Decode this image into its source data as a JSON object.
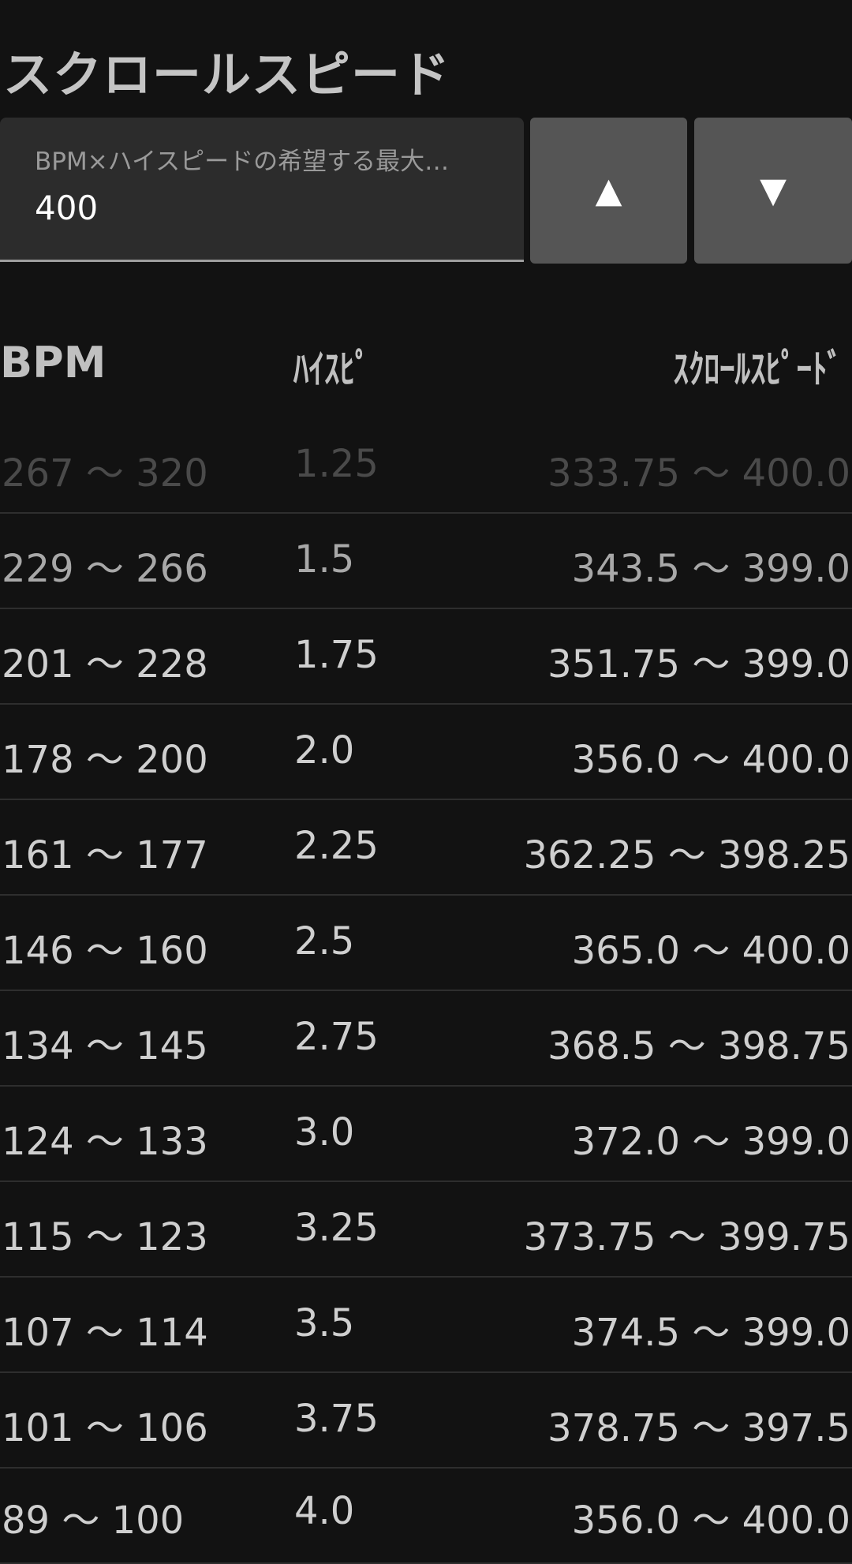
{
  "title": "スクロールスピード",
  "input": {
    "label": "BPM×ハイスピードの希望する最大…",
    "value": "400"
  },
  "buttons": {
    "up": "▲",
    "down": "▼"
  },
  "table": {
    "headers": {
      "bpm": "BPM",
      "highspeed": "ﾊｲｽﾋﾟ",
      "scroll": "ｽｸﾛｰﾙｽﾋﾟｰﾄﾞ"
    },
    "rows": [
      {
        "bpm": "267 〜 320",
        "hs": "1.25",
        "ss": "333.75 〜 400.0"
      },
      {
        "bpm": "229 〜 266",
        "hs": "1.5",
        "ss": "343.5 〜 399.0"
      },
      {
        "bpm": "201 〜 228",
        "hs": "1.75",
        "ss": "351.75 〜 399.0"
      },
      {
        "bpm": "178 〜 200",
        "hs": "2.0",
        "ss": "356.0 〜 400.0"
      },
      {
        "bpm": "161 〜 177",
        "hs": "2.25",
        "ss": "362.25 〜 398.25"
      },
      {
        "bpm": "146 〜 160",
        "hs": "2.5",
        "ss": "365.0 〜 400.0"
      },
      {
        "bpm": "134 〜 145",
        "hs": "2.75",
        "ss": "368.5 〜 398.75"
      },
      {
        "bpm": "124 〜 133",
        "hs": "3.0",
        "ss": "372.0 〜 399.0"
      },
      {
        "bpm": "115 〜 123",
        "hs": "3.25",
        "ss": "373.75 〜 399.75"
      },
      {
        "bpm": "107 〜 114",
        "hs": "3.5",
        "ss": "374.5 〜 399.0"
      },
      {
        "bpm": "101 〜 106",
        "hs": "3.75",
        "ss": "378.75 〜 397.5"
      },
      {
        "bpm": "89 〜 100",
        "hs": "4.0",
        "ss": "356.0 〜 400.0"
      }
    ]
  }
}
